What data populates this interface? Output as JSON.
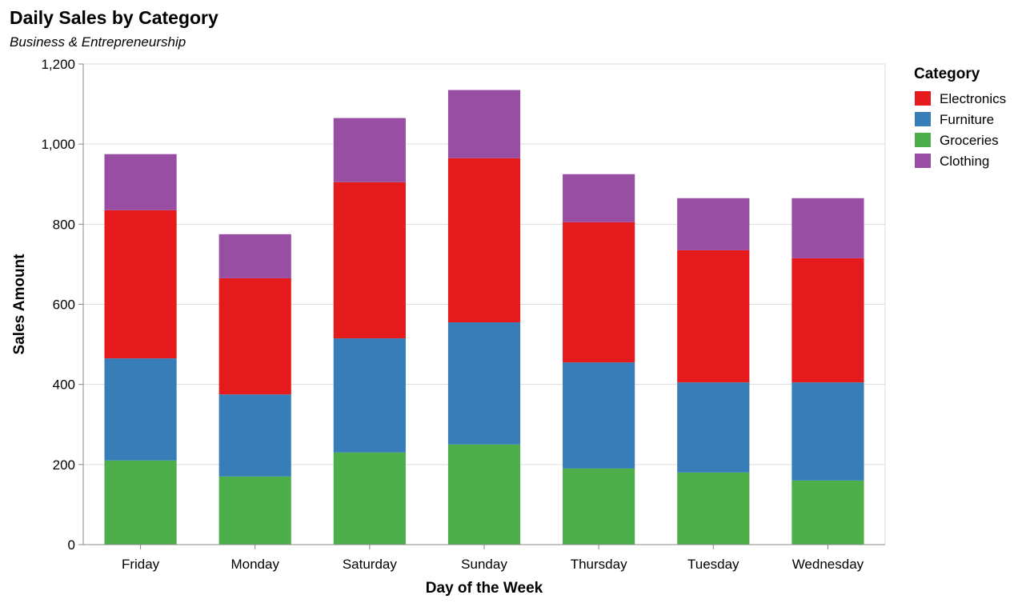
{
  "chart_data": {
    "type": "bar",
    "stacked": true,
    "title": "Daily Sales by Category",
    "subtitle": "Business & Entrepreneurship",
    "xlabel": "Day of the Week",
    "ylabel": "Sales Amount",
    "ylim": [
      0,
      1200
    ],
    "yticks": [
      0,
      200,
      400,
      600,
      800,
      1000,
      1200
    ],
    "ytick_labels": [
      "0",
      "200",
      "400",
      "600",
      "800",
      "1,000",
      "1,200"
    ],
    "grid": true,
    "legend": {
      "title": "Category",
      "position": "right"
    },
    "categories": [
      "Friday",
      "Monday",
      "Saturday",
      "Sunday",
      "Thursday",
      "Tuesday",
      "Wednesday"
    ],
    "series": [
      {
        "name": "Groceries",
        "color": "#4daf4a",
        "values": [
          210,
          170,
          230,
          250,
          190,
          180,
          160
        ]
      },
      {
        "name": "Furniture",
        "color": "#377eb8",
        "values": [
          255,
          205,
          285,
          305,
          265,
          225,
          245
        ]
      },
      {
        "name": "Electronics",
        "color": "#e41a1c",
        "values": [
          370,
          290,
          390,
          410,
          350,
          330,
          310
        ]
      },
      {
        "name": "Clothing",
        "color": "#984ea3",
        "values": [
          140,
          110,
          160,
          170,
          120,
          130,
          150
        ]
      }
    ],
    "legend_order": [
      "Electronics",
      "Furniture",
      "Groceries",
      "Clothing"
    ]
  }
}
